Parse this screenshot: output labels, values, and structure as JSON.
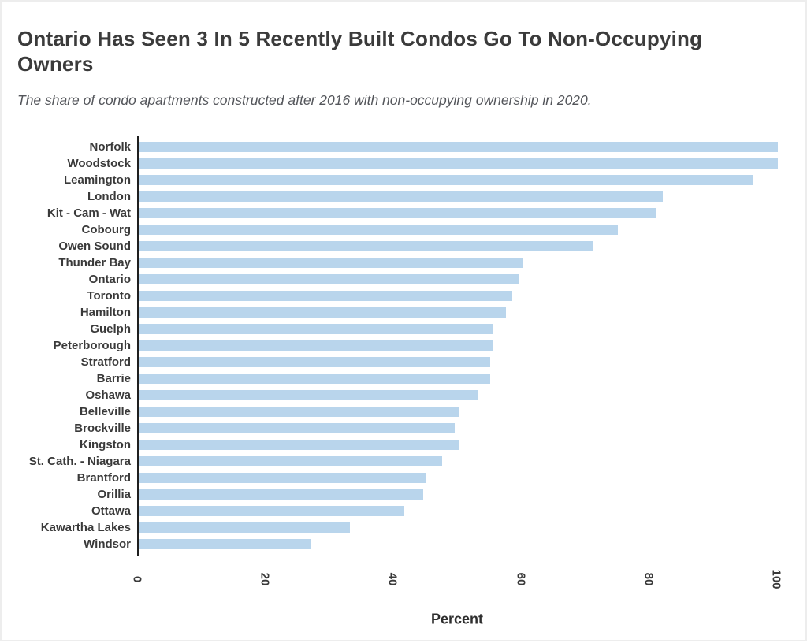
{
  "header": {
    "title": "Ontario Has Seen 3 In 5 Recently Built Condos Go To Non-Occupying Owners",
    "subtitle": "The share of condo apartments constructed after 2016 with non-occupying ownership in 2020."
  },
  "chart_data": {
    "type": "bar",
    "orientation": "horizontal",
    "title": "Ontario Has Seen 3 In 5 Recently Built Condos Go To Non-Occupying Owners",
    "subtitle": "The share of condo apartments constructed after 2016 with non-occupying ownership in 2020.",
    "categories": [
      "Norfolk",
      "Woodstock",
      "Leamington",
      "London",
      "Kit - Cam - Wat",
      "Cobourg",
      "Owen Sound",
      "Thunder Bay",
      "Ontario",
      "Toronto",
      "Hamilton",
      "Guelph",
      "Peterborough",
      "Stratford",
      "Barrie",
      "Oshawa",
      "Belleville",
      "Brockville",
      "Kingston",
      "St. Cath. - Niagara",
      "Brantford",
      "Orillia",
      "Ottawa",
      "Kawartha Lakes",
      "Windsor"
    ],
    "values": [
      100,
      100,
      96,
      82,
      81,
      75,
      71,
      60,
      59.5,
      58.5,
      57.5,
      55.5,
      55.5,
      55,
      55,
      53,
      50,
      49.5,
      50,
      47.5,
      45,
      44.5,
      41.5,
      33,
      27
    ],
    "xlabel": "Percent",
    "ylabel": "",
    "xticks": [
      0,
      20,
      40,
      60,
      80,
      100
    ],
    "xlim": [
      0,
      100
    ],
    "grid": false,
    "legend": "none",
    "bar_color": "#B9D5EC",
    "axis_color": "#1f1f1f"
  }
}
